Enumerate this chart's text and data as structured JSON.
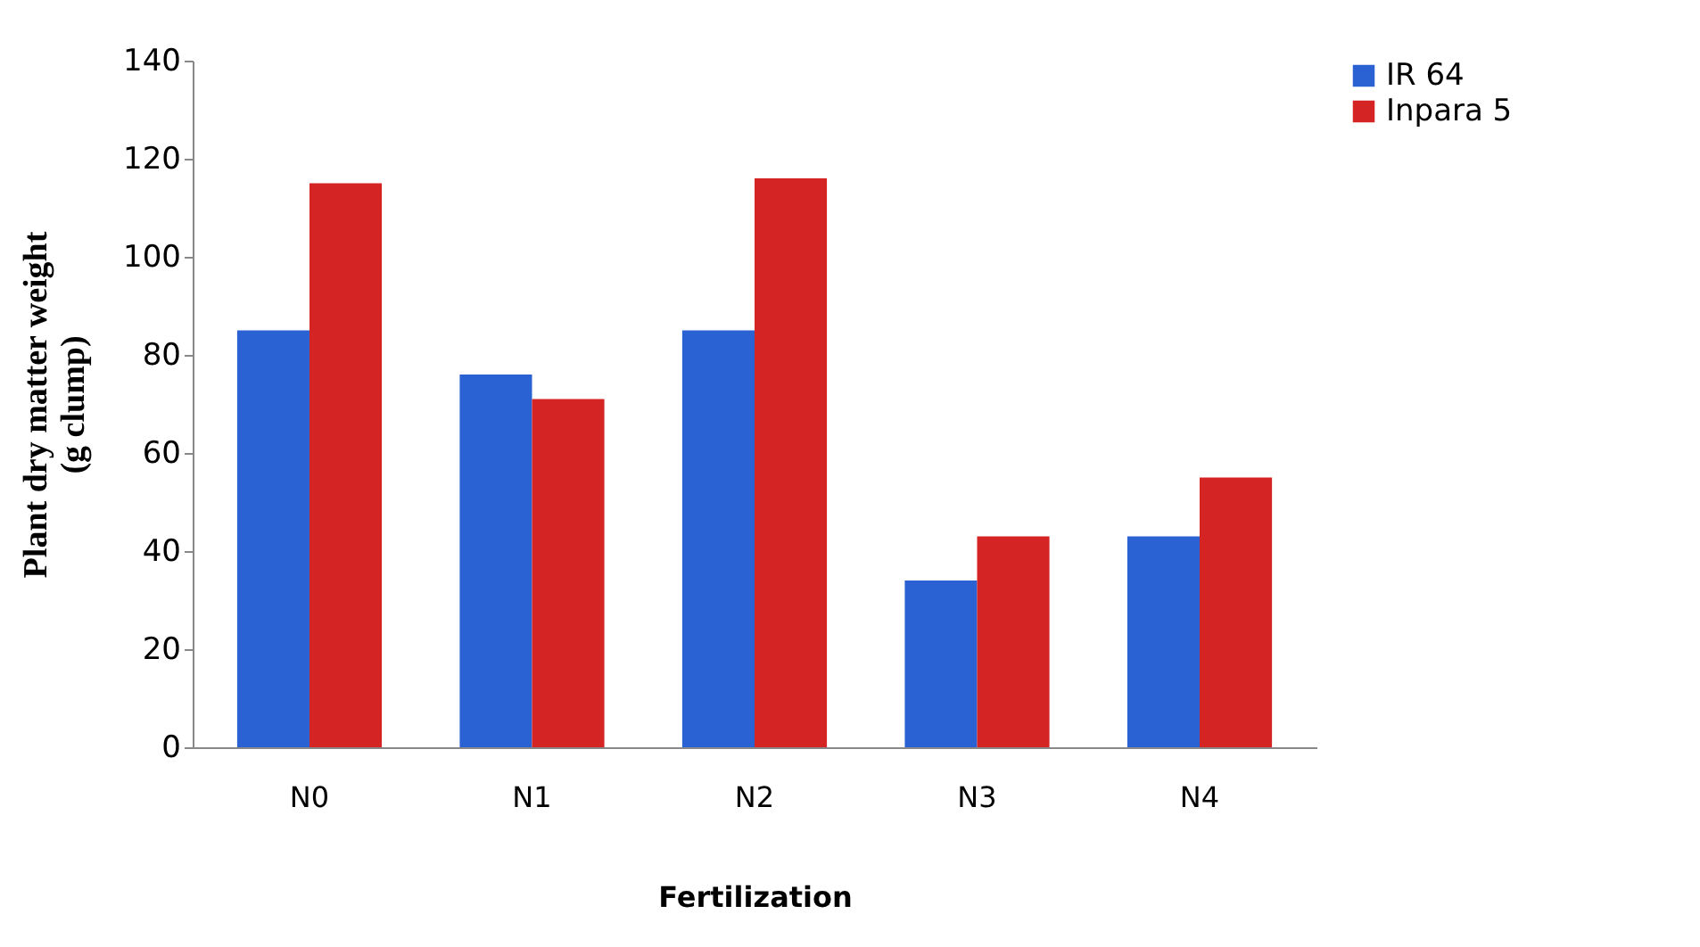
{
  "chart_data": {
    "type": "bar",
    "xlabel": "Fertilization",
    "ylabel": "Plant dry matter weight (g clump)",
    "categories": [
      "N0",
      "N1",
      "N2",
      "N3",
      "N4"
    ],
    "series": [
      {
        "name": "IR 64",
        "color": "#2a62d4",
        "values": [
          85,
          76,
          85,
          34,
          43
        ]
      },
      {
        "name": "Inpara 5",
        "color": "#d42424",
        "values": [
          115,
          71,
          116,
          43,
          55
        ]
      }
    ],
    "ylim": [
      0,
      140
    ],
    "yticks": [
      0,
      20,
      40,
      60,
      80,
      100,
      120,
      140
    ],
    "grid": false,
    "legend": "right"
  }
}
